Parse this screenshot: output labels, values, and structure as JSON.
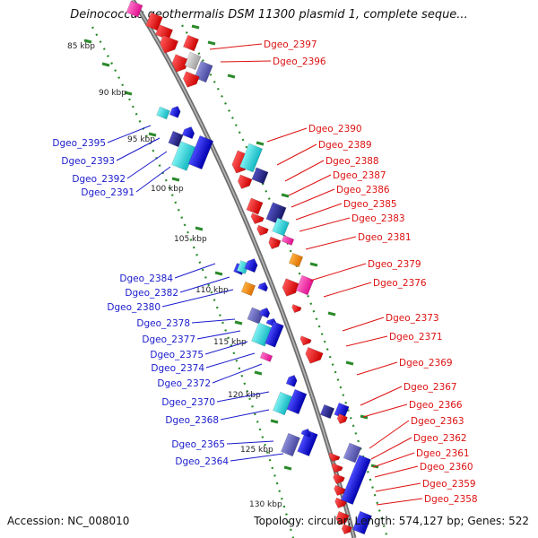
{
  "title": "Deinococcus geothermalis DSM 11300 plasmid 1, complete seque...",
  "footer": {
    "accession": "Accession: NC_008010",
    "summary": "Topology: circular; Length: 574,127 bp; Genes: 522"
  },
  "colors": {
    "forward_gene": "#ee1111",
    "reverse_gene": "#1a1ae6",
    "cyan_gene": "#21d6dc",
    "navy_gene": "#2a2a90",
    "orange_gene": "#f28a0c",
    "pink_gene": "#ff2aa8",
    "gray_gene": "#b8b8b8",
    "slate_gene": "#5a5aa8",
    "backbone": "#8a8a8a",
    "tick_dots": "#2a8a2a",
    "left_labels": "#1a1acc",
    "right_labels": "#dd1111"
  },
  "scale_ticks": [
    "85 kbp",
    "90 kbp",
    "95 kbp",
    "100 kbp",
    "105 kbp",
    "110 kbp",
    "115 kbp",
    "120 kbp",
    "125 kbp",
    "130 kbp"
  ],
  "left_genes": [
    "Dgeo_2395",
    "Dgeo_2393",
    "Dgeo_2392",
    "Dgeo_2391",
    "Dgeo_2384",
    "Dgeo_2382",
    "Dgeo_2380",
    "Dgeo_2378",
    "Dgeo_2377",
    "Dgeo_2375",
    "Dgeo_2374",
    "Dgeo_2372",
    "Dgeo_2370",
    "Dgeo_2368",
    "Dgeo_2365",
    "Dgeo_2364"
  ],
  "right_genes": [
    "Dgeo_2397",
    "Dgeo_2396",
    "Dgeo_2390",
    "Dgeo_2389",
    "Dgeo_2388",
    "Dgeo_2387",
    "Dgeo_2386",
    "Dgeo_2385",
    "Dgeo_2383",
    "Dgeo_2381",
    "Dgeo_2379",
    "Dgeo_2376",
    "Dgeo_2373",
    "Dgeo_2371",
    "Dgeo_2369",
    "Dgeo_2367",
    "Dgeo_2366",
    "Dgeo_2363",
    "Dgeo_2362",
    "Dgeo_2361",
    "Dgeo_2360",
    "Dgeo_2359",
    "Dgeo_2358"
  ]
}
